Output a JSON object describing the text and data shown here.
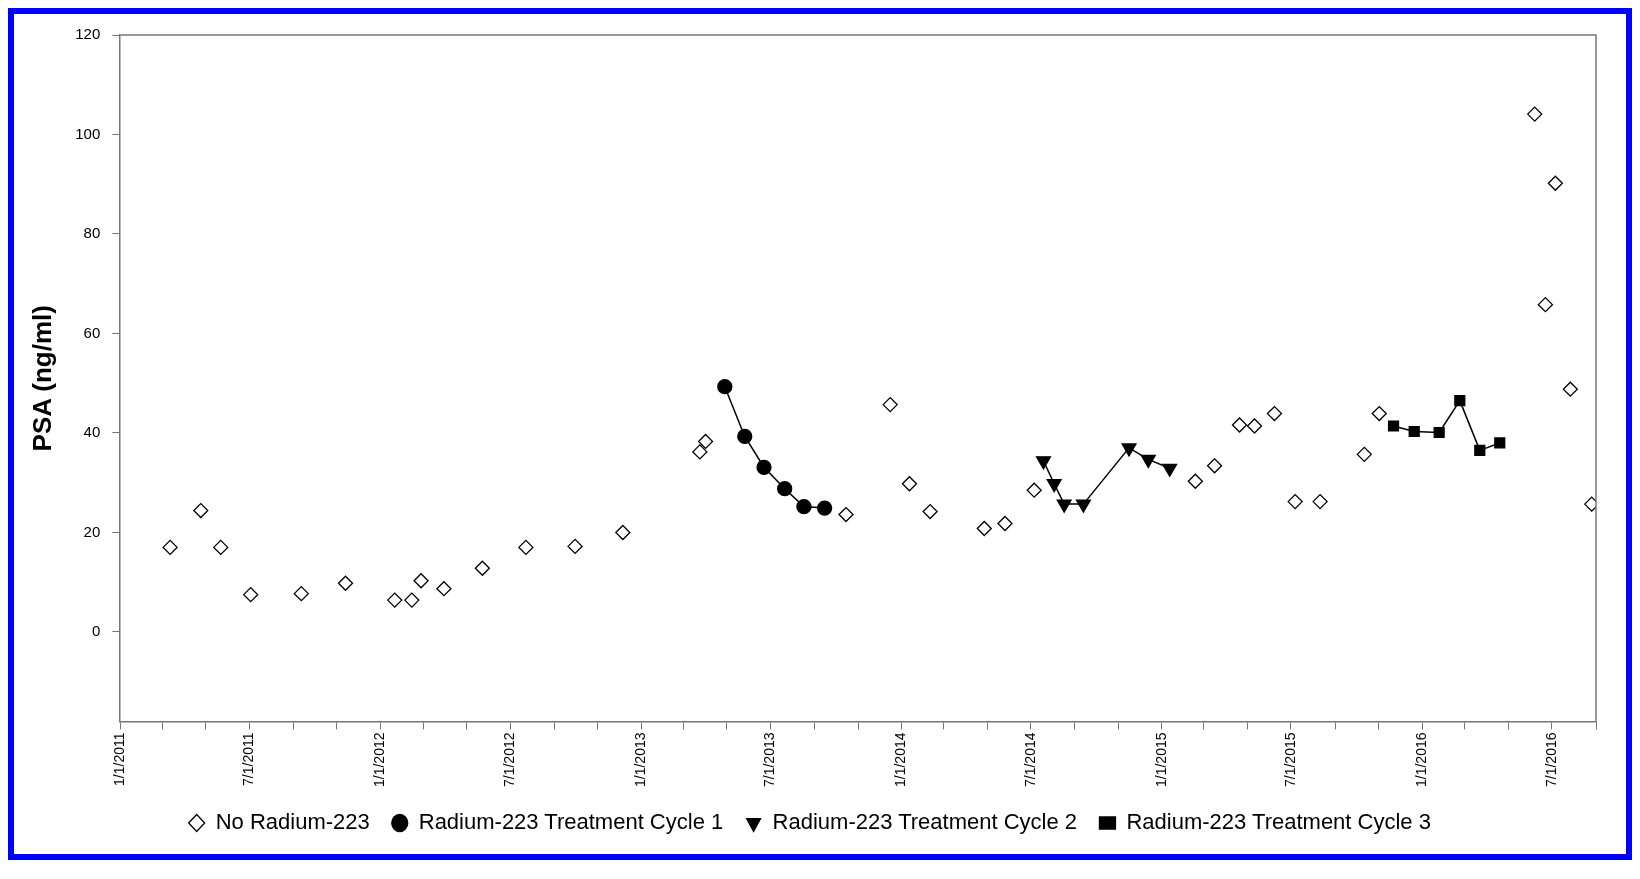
{
  "chart_data": {
    "type": "line",
    "ylabel": "PSA (ng/ml)",
    "legend": "bottom",
    "grid": false,
    "xlim": [
      "2011-01-01",
      "2016-09-01"
    ],
    "xticks": [
      {
        "value": "2011-01-01",
        "label": "1/1/2011"
      },
      {
        "value": "2011-03-01",
        "label": null
      },
      {
        "value": "2011-05-01",
        "label": null
      },
      {
        "value": "2011-07-01",
        "label": "7/1/2011"
      },
      {
        "value": "2011-09-01",
        "label": null
      },
      {
        "value": "2011-11-01",
        "label": null
      },
      {
        "value": "2012-01-01",
        "label": "1/1/2012"
      },
      {
        "value": "2012-03-01",
        "label": null
      },
      {
        "value": "2012-05-01",
        "label": null
      },
      {
        "value": "2012-07-01",
        "label": "7/1/2012"
      },
      {
        "value": "2012-09-01",
        "label": null
      },
      {
        "value": "2012-11-01",
        "label": null
      },
      {
        "value": "2013-01-01",
        "label": "1/1/2013"
      },
      {
        "value": "2013-03-01",
        "label": null
      },
      {
        "value": "2013-05-01",
        "label": null
      },
      {
        "value": "2013-07-01",
        "label": "7/1/2013"
      },
      {
        "value": "2013-09-01",
        "label": null
      },
      {
        "value": "2013-11-01",
        "label": null
      },
      {
        "value": "2014-01-01",
        "label": "1/1/2014"
      },
      {
        "value": "2014-03-01",
        "label": null
      },
      {
        "value": "2014-05-01",
        "label": null
      },
      {
        "value": "2014-07-01",
        "label": "7/1/2014"
      },
      {
        "value": "2014-09-01",
        "label": null
      },
      {
        "value": "2014-11-01",
        "label": null
      },
      {
        "value": "2015-01-01",
        "label": "1/1/2015"
      },
      {
        "value": "2015-03-01",
        "label": null
      },
      {
        "value": "2015-05-01",
        "label": null
      },
      {
        "value": "2015-07-01",
        "label": "7/1/2015"
      },
      {
        "value": "2015-09-01",
        "label": null
      },
      {
        "value": "2015-11-01",
        "label": null
      },
      {
        "value": "2016-01-01",
        "label": "1/1/2016"
      },
      {
        "value": "2016-03-01",
        "label": null
      },
      {
        "value": "2016-05-01",
        "label": null
      },
      {
        "value": "2016-07-01",
        "label": "7/1/2016"
      },
      {
        "value": "2016-09-01",
        "label": null
      }
    ],
    "ylim": [
      -18,
      120
    ],
    "yticks": [
      0,
      20,
      40,
      60,
      80,
      100,
      120
    ],
    "series": [
      {
        "name": "No Radium-223",
        "type": "scatter",
        "marker": "diamond",
        "color": "#000000",
        "x": [
          "2011-03-12",
          "2011-04-24",
          "2011-05-22",
          "2011-07-03",
          "2011-09-12",
          "2011-11-13",
          "2012-01-21",
          "2012-02-14",
          "2012-02-27",
          "2012-03-30",
          "2012-05-23",
          "2012-07-23",
          "2012-09-30",
          "2012-12-06",
          "2013-03-24",
          "2013-04-01",
          "2013-10-15",
          "2013-12-16",
          "2014-01-12",
          "2014-02-10",
          "2014-04-27",
          "2014-05-26",
          "2014-07-06",
          "2015-02-17",
          "2015-03-16",
          "2015-04-20",
          "2015-05-11",
          "2015-06-08",
          "2015-07-07",
          "2015-08-11",
          "2015-10-12",
          "2015-11-02",
          "2016-06-07",
          "2016-06-22",
          "2016-07-06",
          "2016-07-27",
          "2016-08-26"
        ],
        "values": [
          17,
          24.4,
          17,
          7.5,
          7.7,
          9.8,
          6.4,
          6.4,
          10.3,
          8.7,
          12.8,
          17,
          17.2,
          20,
          36.2,
          38.3,
          23.6,
          45.7,
          29.8,
          24.2,
          20.8,
          21.8,
          28.5,
          30.3,
          33.4,
          41.6,
          41.4,
          43.9,
          26.2,
          26.2,
          35.7,
          43.9,
          104.1,
          65.8,
          90.2,
          48.8,
          25.7
        ]
      },
      {
        "name": "Radium-223 Treatment Cycle 1",
        "marker": "circle",
        "color": "#000000",
        "x": [
          "2013-04-28",
          "2013-05-26",
          "2013-06-22",
          "2013-07-21",
          "2013-08-17",
          "2013-09-15"
        ],
        "values": [
          49.3,
          39.3,
          33.1,
          28.8,
          25.2,
          24.9
        ]
      },
      {
        "name": "Radium-223 Treatment Cycle 2",
        "marker": "triangle",
        "color": "#000000",
        "x": [
          "2014-07-19",
          "2014-08-03",
          "2014-08-17",
          "2014-09-13",
          "2014-11-16",
          "2014-12-13",
          "2015-01-12"
        ],
        "values": [
          34.4,
          29.8,
          25.7,
          25.7,
          37,
          34.7,
          32.9
        ]
      },
      {
        "name": "Radium-223 Treatment Cycle 3",
        "marker": "square",
        "color": "#000000",
        "x": [
          "2015-11-22",
          "2015-12-21",
          "2016-01-25",
          "2016-02-23",
          "2016-03-22",
          "2016-04-19"
        ],
        "values": [
          41.4,
          40.3,
          40.1,
          46.5,
          36.5,
          38
        ]
      }
    ]
  }
}
